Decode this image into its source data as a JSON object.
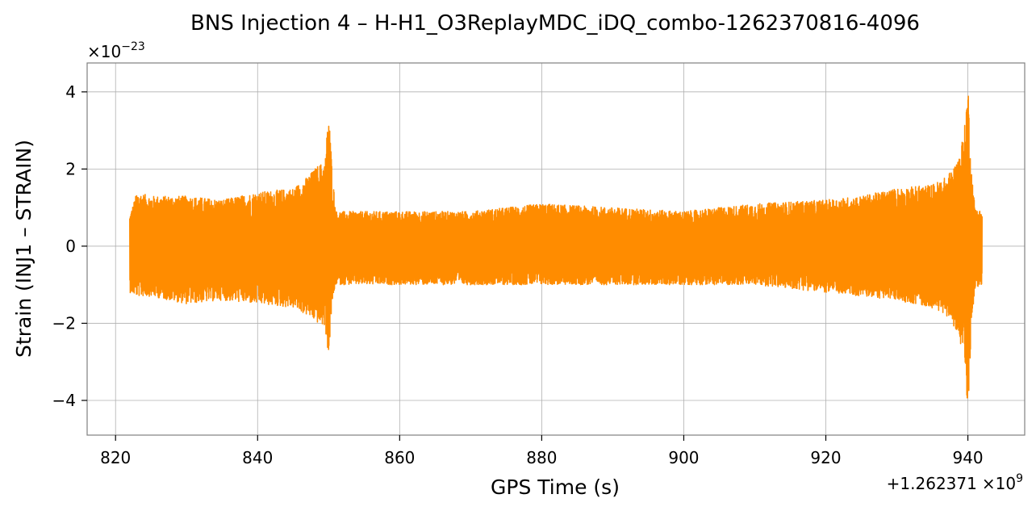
{
  "chart_data": {
    "type": "line",
    "title": "BNS Injection 4 – H-H1_O3ReplayMDC_iDQ_combo-1262370816-4096",
    "xlabel": "GPS Time (s)",
    "ylabel": "Strain (INJ1 – STRAIN)",
    "x_offset_label": "+1.262371",
    "x_offset_exponent_base": "×10",
    "x_offset_exponent": "9",
    "y_scale_label": "×10",
    "y_scale_exponent": "−23",
    "xlim": [
      816,
      948
    ],
    "ylim": [
      -4.9,
      4.75
    ],
    "x_ticks": [
      820,
      840,
      860,
      880,
      900,
      920,
      940
    ],
    "y_ticks": [
      4,
      2,
      0,
      -2,
      -4
    ],
    "y_tick_labels": [
      "4",
      "2",
      "0",
      "−2",
      "−4"
    ],
    "grid": true,
    "series": [
      {
        "color": "#ff8c00",
        "x_start": 822,
        "x_end": 942,
        "envelope_x": [
          822,
          823,
          825,
          830,
          835,
          840,
          845,
          847,
          848.5,
          849.5,
          850,
          850.5,
          851,
          855,
          860,
          870,
          880,
          890,
          900,
          910,
          920,
          925,
          930,
          935,
          937,
          938.5,
          939.5,
          940,
          940.5,
          941,
          942
        ],
        "envelope_upper": [
          0.8,
          1.4,
          1.3,
          1.3,
          1.2,
          1.4,
          1.5,
          1.8,
          2.1,
          2.2,
          3.6,
          2.0,
          0.9,
          0.9,
          0.9,
          0.9,
          1.1,
          1.0,
          0.9,
          1.1,
          1.2,
          1.3,
          1.5,
          1.6,
          1.8,
          2.2,
          3.0,
          4.3,
          2.0,
          1.0,
          0.9
        ],
        "envelope_lower": [
          -1.2,
          -1.3,
          -1.3,
          -1.5,
          -1.4,
          -1.5,
          -1.6,
          -1.8,
          -2.0,
          -2.1,
          -2.9,
          -1.5,
          -1.0,
          -1.0,
          -1.0,
          -1.0,
          -1.0,
          -1.0,
          -1.0,
          -1.0,
          -1.2,
          -1.3,
          -1.4,
          -1.6,
          -1.8,
          -2.2,
          -3.0,
          -4.5,
          -2.0,
          -1.1,
          -1.0
        ]
      }
    ]
  }
}
